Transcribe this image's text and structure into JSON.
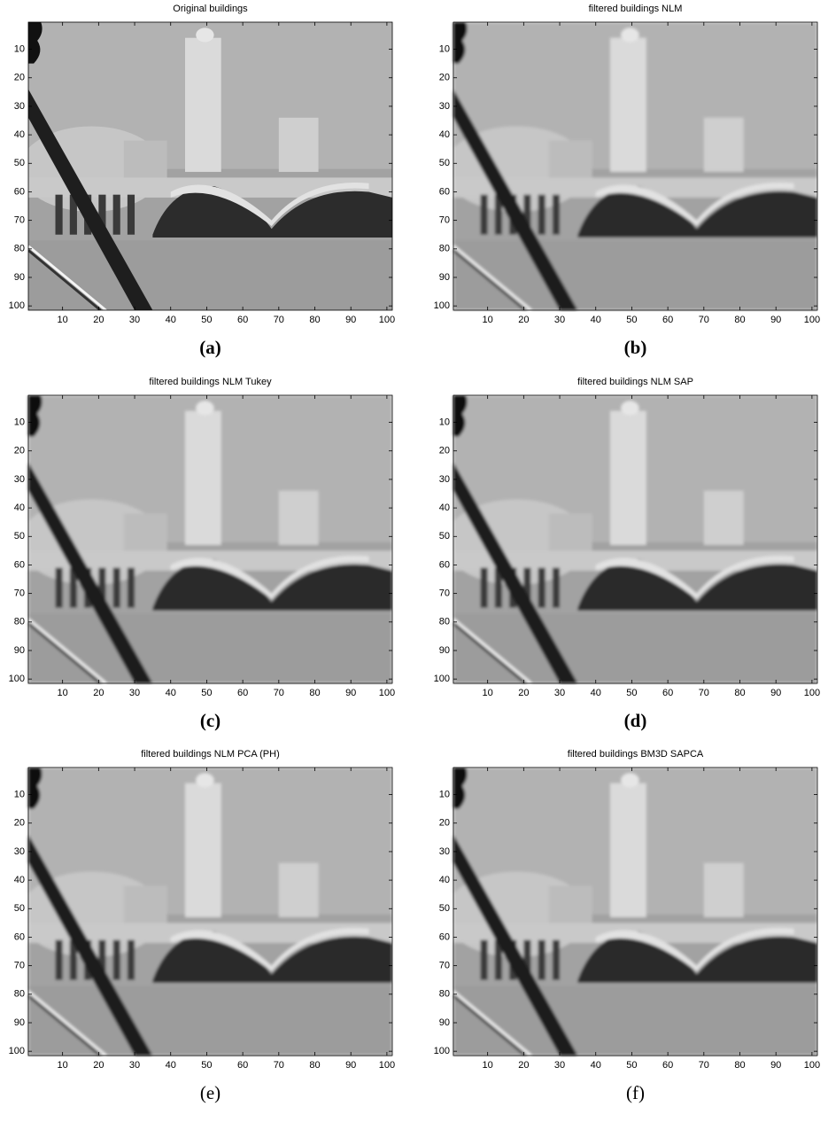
{
  "chart_data": [
    {
      "type": "image",
      "title": "Original buildings",
      "caption": "(a)",
      "filtered": false,
      "xlim": [
        0.5,
        101.5
      ],
      "ylim": [
        0.5,
        101.5
      ],
      "y_inverted": true,
      "xticks": [
        10,
        20,
        30,
        40,
        50,
        60,
        70,
        80,
        90,
        100
      ],
      "yticks": [
        10,
        20,
        30,
        40,
        50,
        60,
        70,
        80,
        90,
        100
      ]
    },
    {
      "type": "image",
      "title": "filtered buildings NLM",
      "caption": "(b)",
      "filtered": true,
      "xlim": [
        0.5,
        101.5
      ],
      "ylim": [
        0.5,
        101.5
      ],
      "y_inverted": true,
      "xticks": [
        10,
        20,
        30,
        40,
        50,
        60,
        70,
        80,
        90,
        100
      ],
      "yticks": [
        10,
        20,
        30,
        40,
        50,
        60,
        70,
        80,
        90,
        100
      ]
    },
    {
      "type": "image",
      "title": "filtered buildings NLM Tukey",
      "caption": "(c)",
      "filtered": true,
      "xlim": [
        0.5,
        101.5
      ],
      "ylim": [
        0.5,
        101.5
      ],
      "y_inverted": true,
      "xticks": [
        10,
        20,
        30,
        40,
        50,
        60,
        70,
        80,
        90,
        100
      ],
      "yticks": [
        10,
        20,
        30,
        40,
        50,
        60,
        70,
        80,
        90,
        100
      ]
    },
    {
      "type": "image",
      "title": "filtered buildings NLM SAP",
      "caption": "(d)",
      "filtered": true,
      "xlim": [
        0.5,
        101.5
      ],
      "ylim": [
        0.5,
        101.5
      ],
      "y_inverted": true,
      "xticks": [
        10,
        20,
        30,
        40,
        50,
        60,
        70,
        80,
        90,
        100
      ],
      "yticks": [
        10,
        20,
        30,
        40,
        50,
        60,
        70,
        80,
        90,
        100
      ]
    },
    {
      "type": "image",
      "title": "filtered buildings NLM PCA (PH)",
      "caption": "(e)",
      "filtered": true,
      "xlim": [
        0.5,
        101.5
      ],
      "ylim": [
        0.5,
        101.5
      ],
      "y_inverted": true,
      "xticks": [
        10,
        20,
        30,
        40,
        50,
        60,
        70,
        80,
        90,
        100
      ],
      "yticks": [
        10,
        20,
        30,
        40,
        50,
        60,
        70,
        80,
        90,
        100
      ]
    },
    {
      "type": "image",
      "title": "filtered buildings BM3D SAPCA",
      "caption": "(f)",
      "filtered": true,
      "xlim": [
        0.5,
        101.5
      ],
      "ylim": [
        0.5,
        101.5
      ],
      "y_inverted": true,
      "xticks": [
        10,
        20,
        30,
        40,
        50,
        60,
        70,
        80,
        90,
        100
      ],
      "yticks": [
        10,
        20,
        30,
        40,
        50,
        60,
        70,
        80,
        90,
        100
      ]
    }
  ]
}
